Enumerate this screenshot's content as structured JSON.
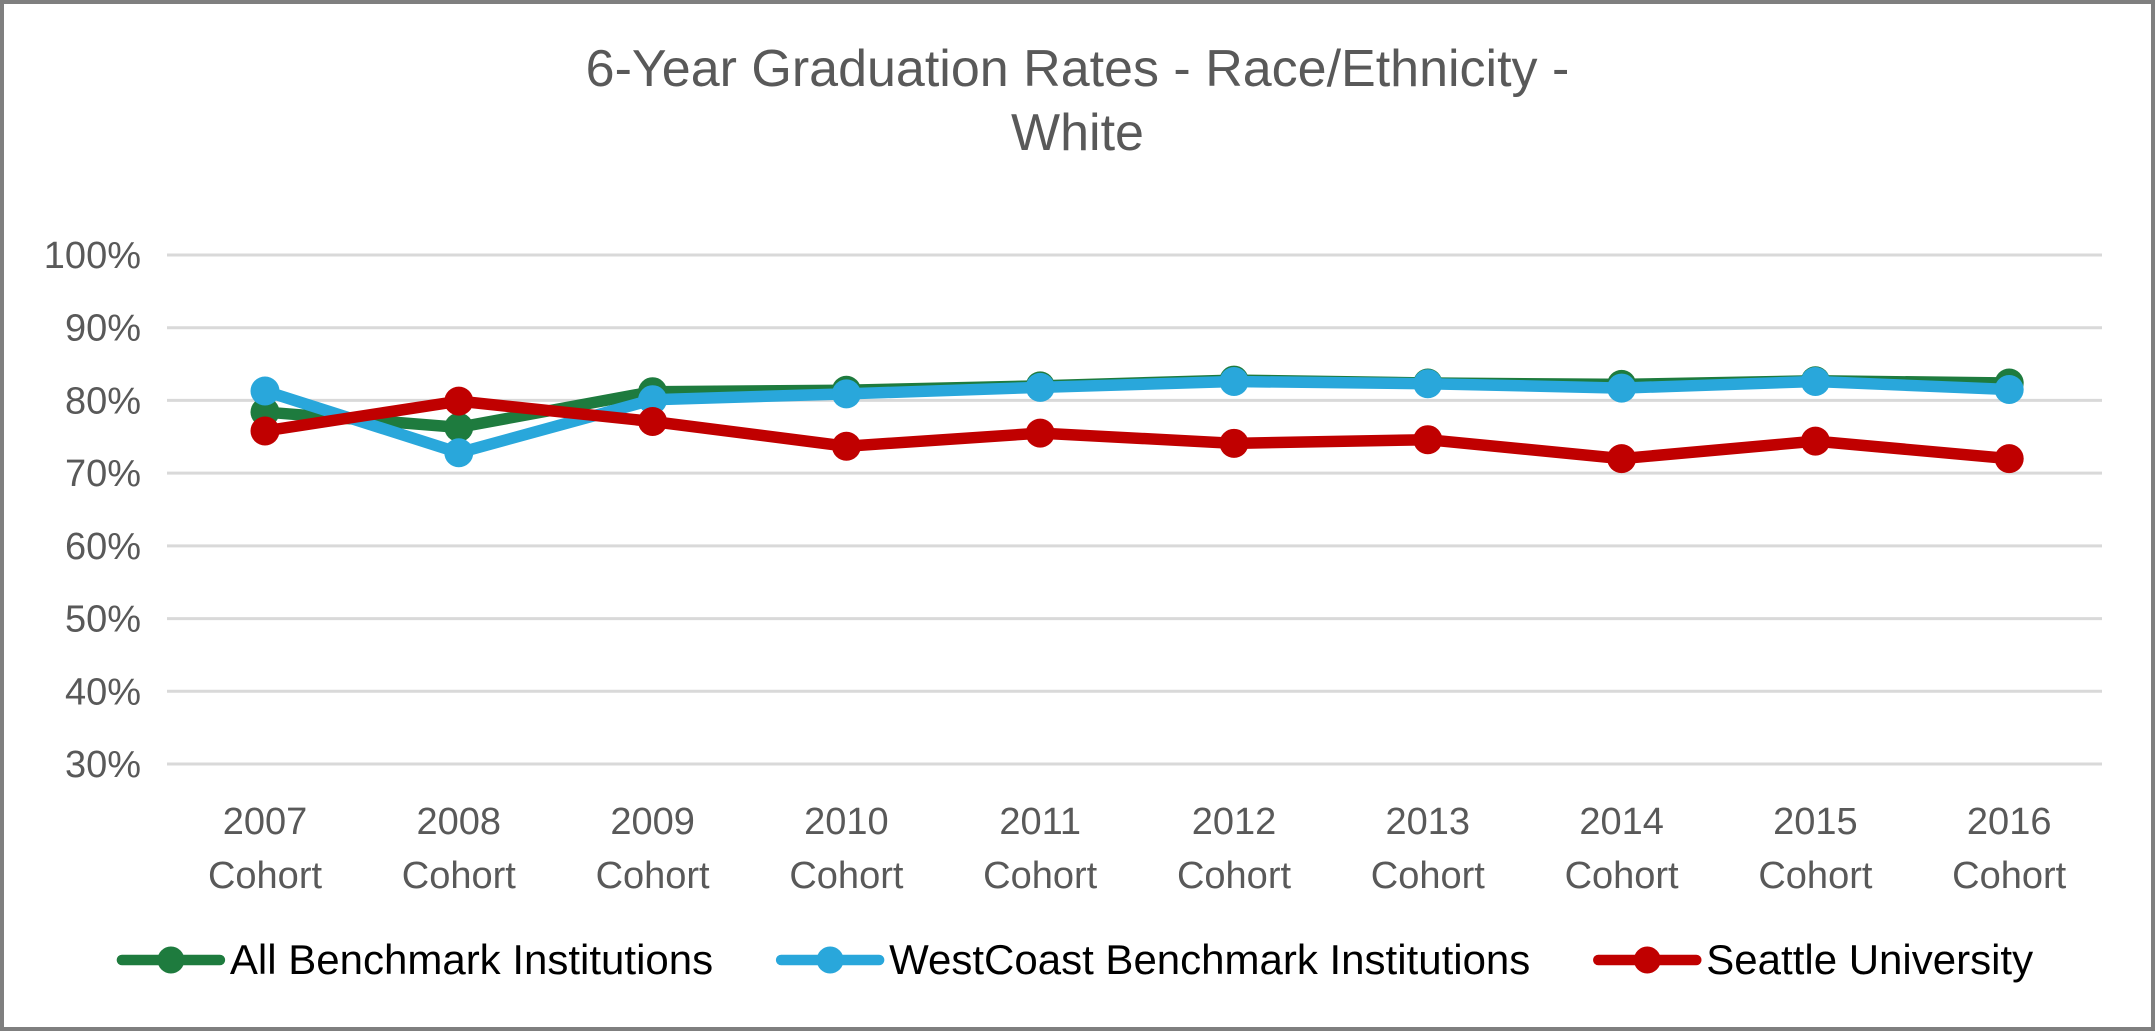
{
  "window": {
    "background_color": "#FFFFFF",
    "border_color": "#7F7F7F"
  },
  "styles": {
    "title_color": "#595959",
    "axis_text_color": "#595959",
    "gridline_color": "#D9D9D9",
    "legend_text_color": "#000000"
  },
  "chart_data": {
    "type": "line",
    "title": "6-Year Graduation Rates - Race/Ethnicity - White",
    "title_lines": [
      "6-Year Graduation Rates - Race/Ethnicity -",
      "White"
    ],
    "categories": [
      "2007 Cohort",
      "2008 Cohort",
      "2009 Cohort",
      "2010 Cohort",
      "2011 Cohort",
      "2012 Cohort",
      "2013 Cohort",
      "2014 Cohort",
      "2015 Cohort",
      "2016 Cohort"
    ],
    "series": [
      {
        "name": "All Benchmark Institutions",
        "color": "#1E7B3E",
        "values": [
          78.4,
          76.3,
          81.2,
          81.4,
          82.0,
          82.8,
          82.4,
          82.2,
          82.7,
          82.4
        ]
      },
      {
        "name": "WestCoast Benchmark Institutions",
        "color": "#29A7DB",
        "values": [
          81.3,
          72.8,
          80.1,
          80.9,
          81.8,
          82.6,
          82.3,
          81.7,
          82.6,
          81.5
        ]
      },
      {
        "name": "Seattle University",
        "color": "#C00000",
        "values": [
          75.8,
          79.9,
          77.1,
          73.7,
          75.5,
          74.1,
          74.6,
          72.0,
          74.4,
          72.0
        ]
      }
    ],
    "y_axis": {
      "min": 30,
      "max": 100,
      "step": 10,
      "tick_labels": [
        "100%",
        "90%",
        "80%",
        "70%",
        "60%",
        "50%",
        "40%",
        "30%"
      ],
      "format": "percent"
    },
    "x_axis": {
      "tick_labels_line2": "Cohort"
    },
    "grid": true,
    "legend_position": "bottom",
    "marker": "circle"
  }
}
